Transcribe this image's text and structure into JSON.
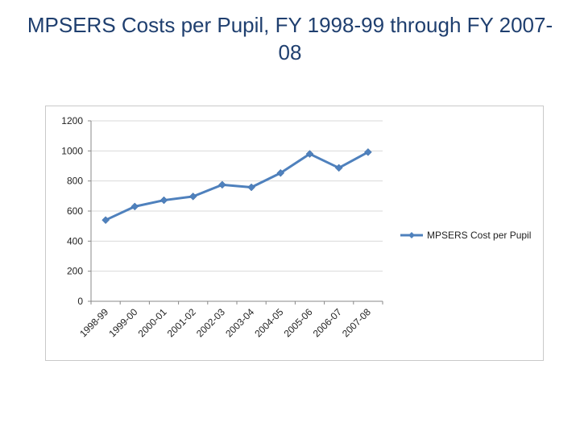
{
  "slide": {
    "title": "MPSERS Costs per Pupil, FY 1998-99 through FY 2007-08"
  },
  "chart_data": {
    "type": "line",
    "title": "",
    "xlabel": "",
    "ylabel": "",
    "categories": [
      "1998-99",
      "1999-00",
      "2000-01",
      "2001-02",
      "2002-03",
      "2003-04",
      "2004-05",
      "2005-06",
      "2006-07",
      "2007-08"
    ],
    "series": [
      {
        "name": "MPSERS Cost per Pupil",
        "values": [
          540,
          630,
          672,
          697,
          775,
          758,
          853,
          980,
          887,
          992
        ],
        "color": "#4f81bd"
      }
    ],
    "ylim": [
      0,
      1200
    ],
    "yticks": [
      0,
      200,
      400,
      600,
      800,
      1000,
      1200
    ],
    "grid": true,
    "legend_position": "right"
  }
}
